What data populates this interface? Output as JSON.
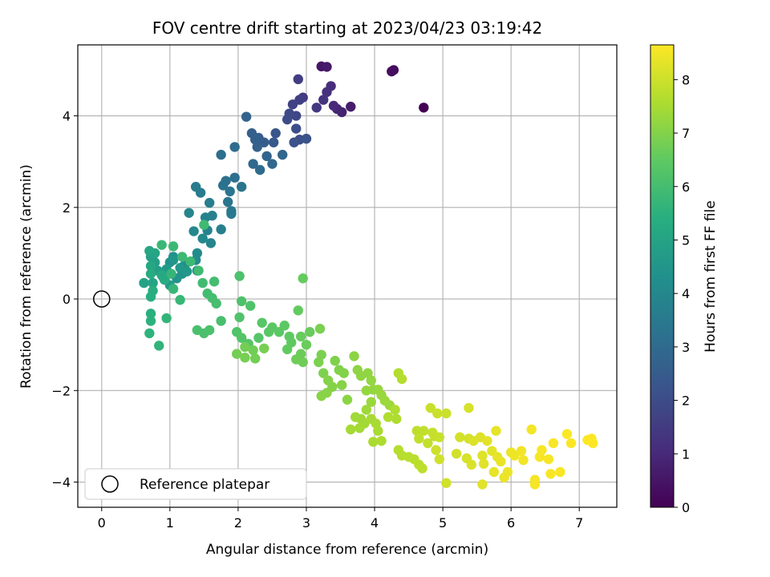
{
  "chart_data": {
    "type": "scatter",
    "title": "FOV centre drift starting at 2023/04/23 03:19:42",
    "xlabel": "Angular distance from reference (arcmin)",
    "ylabel": "Rotation from reference (arcmin)",
    "xlim": [
      -0.35,
      7.55
    ],
    "ylim": [
      -4.55,
      5.55
    ],
    "xticks": [
      0,
      1,
      2,
      3,
      4,
      5,
      6,
      7
    ],
    "yticks": [
      -4,
      -2,
      0,
      2,
      4
    ],
    "xtick_labels": [
      "0",
      "1",
      "2",
      "3",
      "4",
      "5",
      "6",
      "7"
    ],
    "ytick_labels": [
      "−4",
      "−2",
      "0",
      "2",
      "4"
    ],
    "grid": true,
    "colormap": "viridis",
    "colorbar": {
      "label": "Hours from first FF file",
      "range": [
        0,
        8.65
      ],
      "ticks": [
        0,
        1,
        2,
        3,
        4,
        5,
        6,
        7,
        8
      ],
      "tick_labels": [
        "0",
        "1",
        "2",
        "3",
        "4",
        "5",
        "6",
        "7",
        "8"
      ]
    },
    "legend": {
      "position": "lower-left",
      "entries": [
        "Reference platepar"
      ]
    },
    "reference_point": {
      "x": 0,
      "y": 0,
      "label": "Reference platepar"
    },
    "series": [
      {
        "points": [
          [
            4.72,
            4.18,
            0.0
          ],
          [
            4.28,
            5.0,
            0.2
          ],
          [
            4.25,
            4.97,
            0.3
          ],
          [
            3.22,
            5.08,
            0.5
          ],
          [
            3.3,
            5.07,
            0.6
          ],
          [
            3.65,
            4.2,
            0.7
          ],
          [
            3.52,
            4.08,
            0.8
          ],
          [
            3.45,
            4.15,
            0.9
          ],
          [
            3.4,
            4.22,
            1.0
          ],
          [
            3.36,
            4.65,
            1.1
          ],
          [
            3.3,
            4.52,
            1.2
          ],
          [
            3.25,
            4.35,
            1.3
          ],
          [
            3.15,
            4.18,
            1.4
          ],
          [
            2.95,
            4.4,
            1.5
          ],
          [
            2.88,
            4.8,
            1.55
          ],
          [
            2.9,
            4.35,
            1.6
          ],
          [
            2.8,
            4.25,
            1.7
          ],
          [
            2.85,
            4.0,
            1.8
          ],
          [
            2.75,
            4.05,
            1.9
          ],
          [
            2.72,
            3.92,
            2.0
          ],
          [
            2.85,
            3.72,
            2.05
          ],
          [
            2.9,
            3.48,
            2.1
          ],
          [
            2.82,
            3.42,
            2.15
          ],
          [
            3.0,
            3.5,
            2.2
          ],
          [
            2.55,
            3.62,
            2.3
          ],
          [
            2.52,
            3.42,
            2.4
          ],
          [
            2.38,
            3.42,
            2.5
          ],
          [
            2.3,
            3.52,
            2.55
          ],
          [
            2.2,
            3.62,
            2.6
          ],
          [
            2.25,
            3.48,
            2.65
          ],
          [
            2.28,
            3.32,
            2.7
          ],
          [
            2.12,
            3.98,
            2.75
          ],
          [
            2.42,
            3.12,
            2.8
          ],
          [
            2.65,
            3.15,
            2.85
          ],
          [
            2.5,
            2.95,
            2.9
          ],
          [
            2.22,
            2.95,
            2.95
          ],
          [
            2.32,
            2.82,
            3.0
          ],
          [
            1.95,
            3.32,
            3.05
          ],
          [
            1.75,
            3.15,
            3.1
          ],
          [
            1.95,
            2.65,
            3.15
          ],
          [
            1.82,
            2.58,
            3.2
          ],
          [
            1.78,
            2.48,
            3.25
          ],
          [
            2.05,
            2.45,
            3.3
          ],
          [
            1.88,
            2.35,
            3.35
          ],
          [
            1.85,
            2.12,
            3.4
          ],
          [
            1.9,
            1.92,
            3.45
          ],
          [
            1.9,
            1.86,
            3.5
          ],
          [
            1.38,
            2.45,
            3.55
          ],
          [
            1.45,
            2.32,
            3.6
          ],
          [
            1.58,
            2.1,
            3.65
          ],
          [
            1.75,
            1.52,
            3.7
          ],
          [
            1.62,
            1.82,
            3.75
          ],
          [
            1.52,
            1.78,
            3.8
          ],
          [
            1.55,
            1.5,
            3.85
          ],
          [
            1.6,
            1.22,
            3.9
          ],
          [
            1.28,
            1.88,
            3.95
          ],
          [
            1.35,
            1.48,
            4.0
          ],
          [
            1.48,
            1.32,
            4.05
          ],
          [
            1.4,
            1.0,
            4.1
          ],
          [
            1.38,
            0.85,
            4.15
          ],
          [
            1.4,
            0.62,
            4.2
          ],
          [
            1.22,
            0.75,
            4.25
          ],
          [
            1.05,
            0.92,
            4.3
          ],
          [
            1.0,
            0.8,
            4.35
          ],
          [
            1.18,
            0.55,
            4.4
          ],
          [
            1.1,
            0.45,
            4.45
          ],
          [
            1.05,
            0.85,
            4.5
          ],
          [
            1.15,
            0.68,
            4.55
          ],
          [
            1.25,
            0.6,
            4.6
          ],
          [
            0.95,
            0.65,
            4.65
          ],
          [
            1.0,
            0.3,
            4.7
          ],
          [
            0.9,
            0.48,
            4.75
          ],
          [
            0.82,
            0.62,
            4.8
          ],
          [
            0.78,
            0.8,
            4.85
          ],
          [
            0.72,
            0.92,
            4.9
          ],
          [
            0.62,
            0.35,
            4.95
          ],
          [
            0.75,
            0.35,
            5.0
          ],
          [
            0.78,
            1.0,
            5.05
          ],
          [
            0.7,
            1.05,
            5.1
          ],
          [
            0.72,
            0.72,
            5.15
          ],
          [
            0.88,
            0.52,
            5.2
          ],
          [
            0.92,
            0.42,
            5.25
          ],
          [
            0.72,
            0.55,
            5.3
          ],
          [
            0.75,
            0.18,
            5.35
          ],
          [
            0.72,
            0.05,
            5.4
          ],
          [
            0.72,
            -0.32,
            5.45
          ],
          [
            0.72,
            -0.48,
            5.5
          ],
          [
            0.7,
            -0.75,
            5.55
          ],
          [
            0.84,
            -1.02,
            5.6
          ],
          [
            0.95,
            -0.42,
            5.65
          ],
          [
            1.02,
            0.55,
            5.7
          ],
          [
            1.05,
            0.22,
            5.72
          ],
          [
            1.15,
            -0.02,
            5.75
          ],
          [
            0.88,
            1.18,
            5.78
          ],
          [
            1.05,
            1.15,
            5.8
          ],
          [
            1.18,
            0.92,
            5.82
          ],
          [
            1.3,
            0.82,
            5.85
          ],
          [
            1.5,
            1.62,
            5.88
          ],
          [
            1.42,
            0.62,
            5.9
          ],
          [
            1.48,
            0.35,
            5.92
          ],
          [
            1.55,
            0.12,
            5.95
          ],
          [
            1.65,
            0.38,
            5.98
          ],
          [
            1.62,
            0.02,
            6.0
          ],
          [
            1.68,
            -0.1,
            6.02
          ],
          [
            1.75,
            -0.48,
            6.05
          ],
          [
            1.4,
            -0.68,
            6.08
          ],
          [
            1.5,
            -0.75,
            6.1
          ],
          [
            1.58,
            -0.68,
            6.12
          ],
          [
            2.02,
            0.5,
            6.15
          ],
          [
            2.05,
            -0.05,
            6.18
          ],
          [
            2.18,
            -0.15,
            6.2
          ],
          [
            2.02,
            -0.4,
            6.22
          ],
          [
            1.98,
            -0.72,
            6.25
          ],
          [
            2.05,
            -0.85,
            6.28
          ],
          [
            2.15,
            -0.98,
            6.3
          ],
          [
            2.3,
            -0.85,
            6.32
          ],
          [
            2.35,
            -0.52,
            6.35
          ],
          [
            2.45,
            -0.72,
            6.38
          ],
          [
            2.5,
            -0.62,
            6.4
          ],
          [
            2.6,
            -0.72,
            6.42
          ],
          [
            2.68,
            -0.58,
            6.45
          ],
          [
            2.75,
            -0.82,
            6.48
          ],
          [
            2.78,
            -0.95,
            6.5
          ],
          [
            2.72,
            -1.1,
            6.52
          ],
          [
            2.88,
            -0.25,
            6.55
          ],
          [
            2.95,
            0.45,
            6.58
          ],
          [
            2.92,
            -0.82,
            6.6
          ],
          [
            3.05,
            -0.72,
            6.62
          ],
          [
            3.0,
            -1.0,
            6.65
          ],
          [
            2.92,
            -1.2,
            6.68
          ],
          [
            2.85,
            -1.32,
            6.7
          ],
          [
            2.95,
            -1.38,
            6.72
          ],
          [
            2.22,
            -1.12,
            6.74
          ],
          [
            2.25,
            -1.3,
            6.76
          ],
          [
            2.1,
            -1.05,
            6.78
          ],
          [
            1.98,
            -1.2,
            6.8
          ],
          [
            2.1,
            -1.28,
            6.82
          ],
          [
            2.38,
            -1.08,
            6.84
          ],
          [
            3.2,
            -0.65,
            6.86
          ],
          [
            3.22,
            -1.22,
            6.88
          ],
          [
            3.18,
            -1.38,
            6.9
          ],
          [
            3.25,
            -1.62,
            6.92
          ],
          [
            3.42,
            -1.35,
            6.94
          ],
          [
            3.48,
            -1.55,
            6.96
          ],
          [
            3.55,
            -1.62,
            6.98
          ],
          [
            3.32,
            -1.78,
            7.0
          ],
          [
            3.38,
            -1.92,
            7.02
          ],
          [
            3.52,
            -1.88,
            7.04
          ],
          [
            3.3,
            -2.05,
            7.06
          ],
          [
            3.22,
            -2.12,
            7.08
          ],
          [
            3.6,
            -2.2,
            7.1
          ],
          [
            3.7,
            -1.25,
            7.12
          ],
          [
            3.75,
            -1.55,
            7.14
          ],
          [
            3.8,
            -1.68,
            7.16
          ],
          [
            3.9,
            -1.62,
            7.18
          ],
          [
            3.95,
            -1.78,
            7.2
          ],
          [
            3.88,
            -2.0,
            7.22
          ],
          [
            3.98,
            -1.98,
            7.24
          ],
          [
            4.05,
            -1.98,
            7.26
          ],
          [
            4.1,
            -2.1,
            7.28
          ],
          [
            3.95,
            -2.25,
            7.3
          ],
          [
            4.15,
            -2.22,
            7.32
          ],
          [
            4.22,
            -2.32,
            7.34
          ],
          [
            3.88,
            -2.42,
            7.36
          ],
          [
            3.8,
            -2.62,
            7.38
          ],
          [
            3.72,
            -2.58,
            7.4
          ],
          [
            3.85,
            -2.72,
            7.42
          ],
          [
            3.78,
            -2.82,
            7.44
          ],
          [
            3.65,
            -2.85,
            7.46
          ],
          [
            3.95,
            -2.62,
            7.48
          ],
          [
            4.02,
            -2.72,
            7.5
          ],
          [
            4.05,
            -2.88,
            7.52
          ],
          [
            3.98,
            -3.12,
            7.54
          ],
          [
            4.1,
            -3.1,
            7.56
          ],
          [
            4.3,
            -2.42,
            7.58
          ],
          [
            4.32,
            -2.62,
            7.6
          ],
          [
            4.2,
            -2.58,
            7.62
          ],
          [
            4.35,
            -1.62,
            7.64
          ],
          [
            4.4,
            -1.75,
            7.66
          ],
          [
            4.35,
            -3.3,
            7.68
          ],
          [
            4.4,
            -3.42,
            7.7
          ],
          [
            4.5,
            -3.45,
            7.72
          ],
          [
            4.58,
            -3.5,
            7.74
          ],
          [
            4.65,
            -3.62,
            7.76
          ],
          [
            4.7,
            -3.7,
            7.78
          ],
          [
            4.62,
            -2.88,
            7.8
          ],
          [
            4.72,
            -2.88,
            7.82
          ],
          [
            4.65,
            -3.05,
            7.84
          ],
          [
            4.78,
            -3.15,
            7.86
          ],
          [
            4.85,
            -2.92,
            7.88
          ],
          [
            4.88,
            -3.0,
            7.9
          ],
          [
            4.95,
            -3.02,
            7.92
          ],
          [
            4.82,
            -2.38,
            7.94
          ],
          [
            4.92,
            -2.5,
            7.96
          ],
          [
            5.05,
            -2.5,
            7.98
          ],
          [
            4.9,
            -3.3,
            8.0
          ],
          [
            4.95,
            -3.5,
            8.02
          ],
          [
            5.05,
            -4.02,
            8.04
          ],
          [
            5.2,
            -3.38,
            8.06
          ],
          [
            5.25,
            -3.02,
            8.08
          ],
          [
            5.38,
            -3.05,
            8.1
          ],
          [
            5.38,
            -2.38,
            8.12
          ],
          [
            5.35,
            -3.48,
            8.14
          ],
          [
            5.42,
            -3.62,
            8.16
          ],
          [
            5.45,
            -3.1,
            8.18
          ],
          [
            5.55,
            -3.02,
            8.2
          ],
          [
            5.58,
            -3.42,
            8.22
          ],
          [
            5.6,
            -3.6,
            8.24
          ],
          [
            5.58,
            -4.05,
            8.26
          ],
          [
            5.65,
            -3.1,
            8.28
          ],
          [
            5.72,
            -3.32,
            8.3
          ],
          [
            5.78,
            -2.88,
            8.32
          ],
          [
            5.8,
            -3.45,
            8.34
          ],
          [
            5.75,
            -3.78,
            8.36
          ],
          [
            5.85,
            -3.55,
            8.38
          ],
          [
            5.9,
            -3.9,
            8.4
          ],
          [
            5.95,
            -3.78,
            8.42
          ],
          [
            6.0,
            -3.35,
            8.44
          ],
          [
            6.05,
            -3.42,
            8.46
          ],
          [
            6.15,
            -3.32,
            8.48
          ],
          [
            6.18,
            -3.52,
            8.5
          ],
          [
            6.3,
            -2.85,
            8.52
          ],
          [
            6.35,
            -3.95,
            8.53
          ],
          [
            6.35,
            -4.05,
            8.54
          ],
          [
            6.42,
            -3.45,
            8.55
          ],
          [
            6.45,
            -3.3,
            8.56
          ],
          [
            6.55,
            -3.5,
            8.57
          ],
          [
            6.58,
            -3.82,
            8.58
          ],
          [
            6.62,
            -3.15,
            8.59
          ],
          [
            6.72,
            -3.78,
            8.6
          ],
          [
            6.82,
            -2.95,
            8.61
          ],
          [
            6.88,
            -3.15,
            8.62
          ],
          [
            7.12,
            -3.08,
            8.63
          ],
          [
            7.18,
            -3.05,
            8.64
          ],
          [
            7.2,
            -3.15,
            8.65
          ]
        ]
      }
    ]
  }
}
